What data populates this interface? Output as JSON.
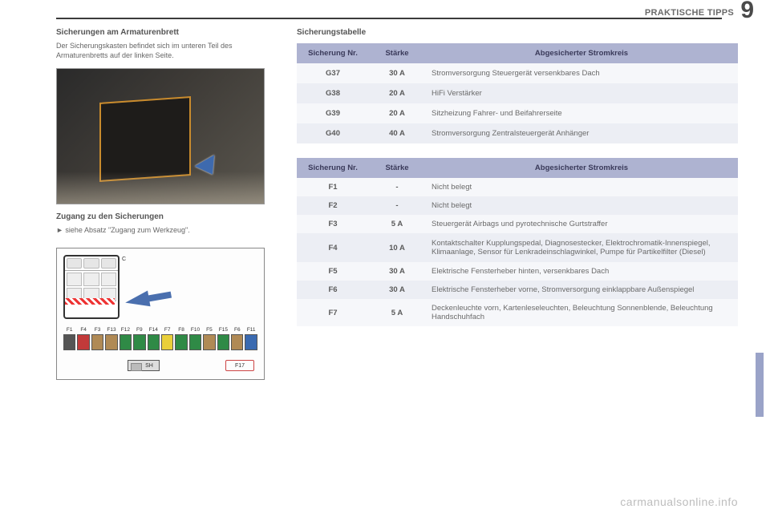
{
  "header": {
    "section": "PRAKTISCHE TIPPS",
    "chapter_number": "9"
  },
  "left": {
    "title": "Sicherungen am Armaturenbrett",
    "intro": "Der Sicherungskasten befindet sich im unteren Teil des Armaturenbretts auf der linken Seite.",
    "access_title": "Zugang zu den Sicherungen",
    "access_line": "siehe Absatz \"Zugang zum Werkzeug\".",
    "diagram": {
      "c_label": "C",
      "labels": [
        "F1",
        "F4",
        "F3",
        "F13",
        "F12",
        "F9",
        "F14",
        "F7",
        "F8",
        "F10",
        "F5",
        "F15",
        "F6",
        "F11"
      ],
      "colors": [
        "#555555",
        "#c23a3a",
        "#b08a55",
        "#b08a55",
        "#2f8a46",
        "#2f8a46",
        "#2f8a46",
        "#e9cf3a",
        "#2f8a46",
        "#2f8a46",
        "#b08a55",
        "#2f8a46",
        "#b08a55",
        "#3a6ab0"
      ],
      "sh_label": "SH",
      "f17_label": "F17"
    }
  },
  "right": {
    "title": "Sicherungstabelle",
    "table1": {
      "headers": [
        "Sicherung Nr.",
        "Stärke",
        "Abgesicherter Stromkreis"
      ],
      "rows": [
        [
          "G37",
          "30 A",
          "Stromversorgung Steuergerät versenkbares Dach"
        ],
        [
          "G38",
          "20 A",
          "HiFi Verstärker"
        ],
        [
          "G39",
          "20 A",
          "Sitzheizung Fahrer- und Beifahrerseite"
        ],
        [
          "G40",
          "40 A",
          "Stromversorgung Zentralsteuergerät Anhänger"
        ]
      ]
    },
    "table2": {
      "headers": [
        "Sicherung Nr.",
        "Stärke",
        "Abgesicherter Stromkreis"
      ],
      "rows": [
        [
          "F1",
          "-",
          "Nicht belegt"
        ],
        [
          "F2",
          "-",
          "Nicht belegt"
        ],
        [
          "F3",
          "5 A",
          "Steuergerät Airbags und pyrotechnische Gurtstraffer"
        ],
        [
          "F4",
          "10 A",
          "Kontaktschalter Kupplungspedal, Diagnosestecker, Elektrochromatik-Innenspiegel, Klimaanlage, Sensor für Lenkradeinschlagwinkel, Pumpe für Partikelfilter (Diesel)"
        ],
        [
          "F5",
          "30 A",
          "Elektrische Fensterheber hinten, versenkbares Dach"
        ],
        [
          "F6",
          "30 A",
          "Elektrische Fensterheber vorne, Stromversorgung einklappbare Außenspiegel"
        ],
        [
          "F7",
          "5 A",
          "Deckenleuchte vorn, Kartenleseleuchten, Beleuchtung Sonnenblende, Beleuchtung Handschuhfach"
        ]
      ]
    }
  },
  "watermark": "carmanualsonline.info",
  "colors": {
    "table_header_bg": "#aeb3d1",
    "row_alt1": "#f6f7fa",
    "row_alt2": "#eceef4",
    "side_tab": "#9aa3c8"
  }
}
